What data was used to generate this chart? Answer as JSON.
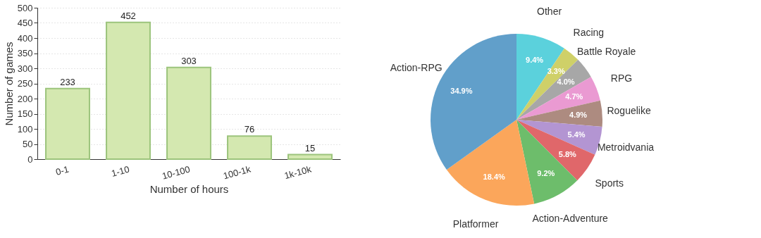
{
  "chart_data": [
    {
      "type": "bar",
      "xlabel": "Number of hours",
      "ylabel": "Number of games",
      "categories": [
        "0-1",
        "1-10",
        "10-100",
        "100-1k",
        "1k-10k"
      ],
      "values": [
        233,
        452,
        303,
        76,
        15
      ],
      "color": "#d4e8b0",
      "ylim": [
        0,
        500
      ],
      "yticks": [
        0,
        50,
        100,
        150,
        200,
        250,
        300,
        350,
        400,
        450,
        500
      ],
      "grid": "y",
      "data_labels": true
    },
    {
      "type": "pie",
      "categories": [
        "Other",
        "Racing",
        "Battle Royale",
        "RPG",
        "Roguelike",
        "Metroidvania",
        "Sports",
        "Action-Adventure",
        "Platformer",
        "Action-RPG"
      ],
      "values": [
        9.4,
        3.3,
        4.0,
        4.7,
        4.9,
        5.4,
        5.8,
        9.2,
        18.4,
        34.9
      ],
      "colors": [
        "#5bd1dc",
        "#cfd068",
        "#a7a7a7",
        "#ea9ad2",
        "#ad8b80",
        "#b395d2",
        "#e0676a",
        "#6dbd6b",
        "#fba65b",
        "#619fca"
      ],
      "value_labels": [
        "9.4%",
        "3.3%",
        "4.0%",
        "4.7%",
        "4.9%",
        "5.4%",
        "5.8%",
        "9.2%",
        "18.4%",
        "34.9%"
      ],
      "legend": false
    }
  ]
}
